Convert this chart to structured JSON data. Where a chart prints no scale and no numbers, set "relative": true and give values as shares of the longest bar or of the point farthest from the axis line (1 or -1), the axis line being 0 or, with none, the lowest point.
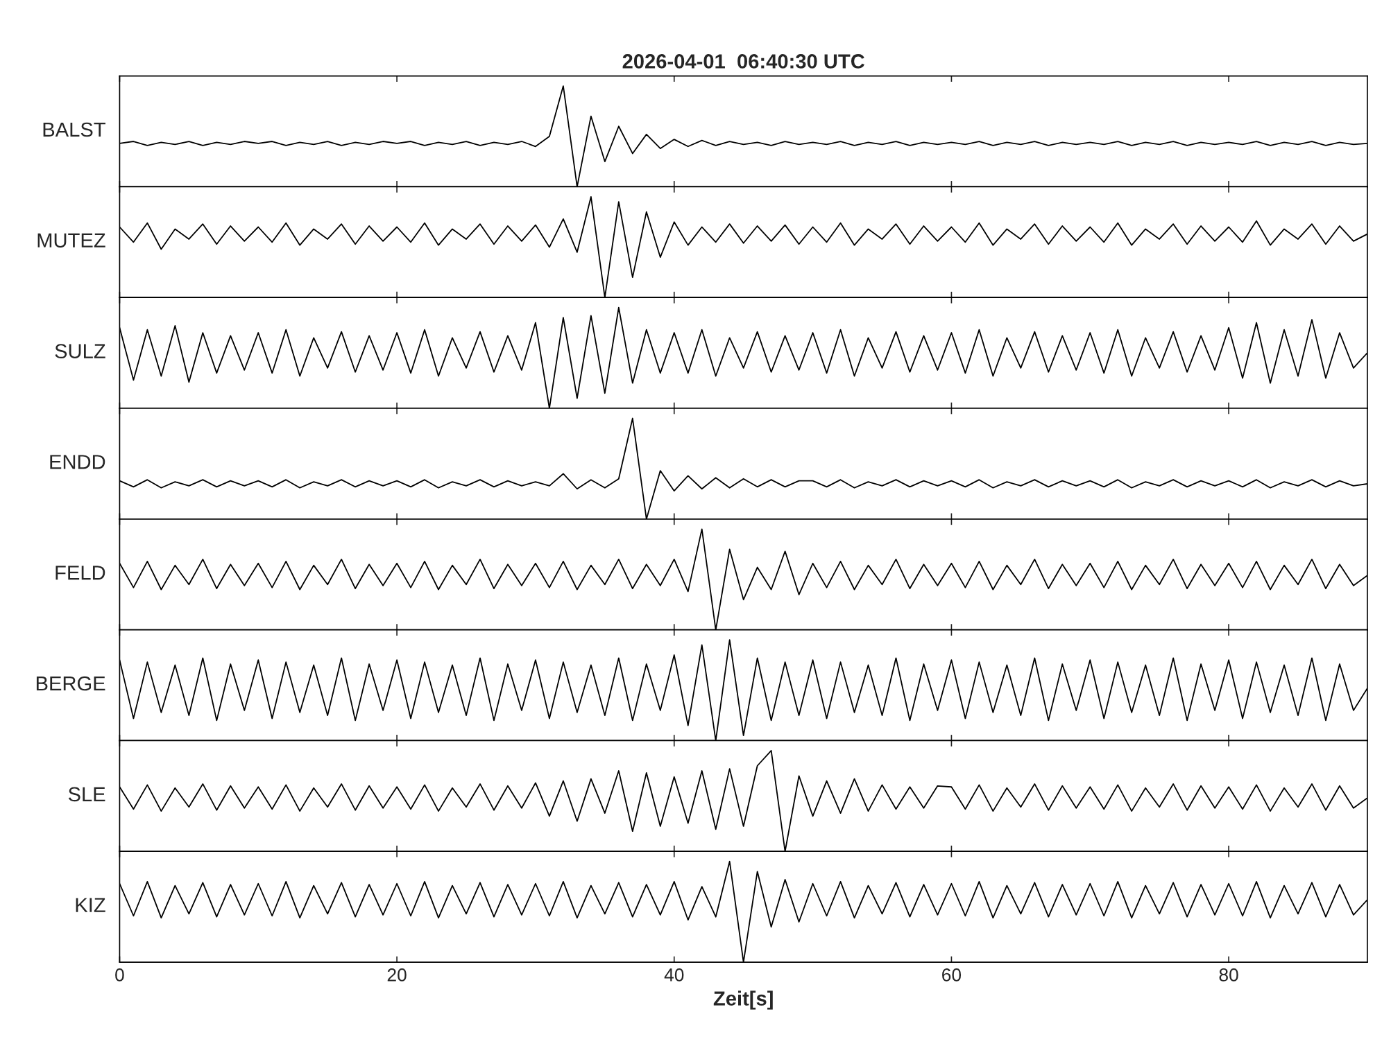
{
  "chart_data": [
    {
      "type": "line",
      "title": "2026-04-01  06:40:30 UTC",
      "ylabel": "BALST",
      "relative": true,
      "color": "#000000",
      "xlim": [
        0,
        90
      ],
      "xticks": [
        0,
        20,
        40,
        60,
        80
      ],
      "tick_labels": false,
      "x": [
        0,
        1,
        2,
        3,
        4,
        5,
        6,
        7,
        8,
        9,
        10,
        11,
        12,
        13,
        14,
        15,
        16,
        17,
        18,
        19,
        20,
        21,
        22,
        23,
        24,
        25,
        26,
        27,
        28,
        29,
        30,
        31,
        32,
        33,
        34,
        35,
        36,
        37,
        38,
        39,
        40,
        41,
        42,
        43,
        44,
        45,
        46,
        47,
        48,
        49,
        50,
        51,
        52,
        53,
        54,
        55,
        56,
        57,
        58,
        59,
        60,
        61,
        62,
        63,
        64,
        65,
        66,
        67,
        68,
        69,
        70,
        71,
        72,
        73,
        74,
        75,
        76,
        77,
        78,
        79,
        80,
        81,
        82,
        83,
        84,
        85,
        86,
        87,
        88,
        89,
        90
      ],
      "values": [
        0.43,
        0.45,
        0.41,
        0.44,
        0.42,
        0.45,
        0.41,
        0.44,
        0.42,
        0.45,
        0.43,
        0.45,
        0.41,
        0.44,
        0.42,
        0.45,
        0.41,
        0.44,
        0.42,
        0.45,
        0.43,
        0.45,
        0.41,
        0.44,
        0.42,
        0.45,
        0.41,
        0.44,
        0.42,
        0.45,
        0.4,
        0.5,
        1.0,
        0.0,
        0.7,
        0.25,
        0.6,
        0.33,
        0.52,
        0.38,
        0.47,
        0.4,
        0.46,
        0.41,
        0.45,
        0.42,
        0.44,
        0.41,
        0.45,
        0.42,
        0.44,
        0.42,
        0.45,
        0.41,
        0.44,
        0.42,
        0.45,
        0.41,
        0.44,
        0.42,
        0.44,
        0.42,
        0.45,
        0.41,
        0.44,
        0.42,
        0.45,
        0.41,
        0.44,
        0.42,
        0.44,
        0.42,
        0.45,
        0.41,
        0.44,
        0.42,
        0.45,
        0.41,
        0.44,
        0.42,
        0.44,
        0.42,
        0.45,
        0.41,
        0.44,
        0.42,
        0.45,
        0.41,
        0.44,
        0.42,
        0.43
      ]
    },
    {
      "type": "line",
      "ylabel": "MUTEZ",
      "relative": true,
      "color": "#000000",
      "xlim": [
        0,
        90
      ],
      "xticks": [
        0,
        20,
        40,
        60,
        80
      ],
      "tick_labels": false,
      "x": [
        0,
        1,
        2,
        3,
        4,
        5,
        6,
        7,
        8,
        9,
        10,
        11,
        12,
        13,
        14,
        15,
        16,
        17,
        18,
        19,
        20,
        21,
        22,
        23,
        24,
        25,
        26,
        27,
        28,
        29,
        30,
        31,
        32,
        33,
        34,
        35,
        36,
        37,
        38,
        39,
        40,
        41,
        42,
        43,
        44,
        45,
        46,
        47,
        48,
        49,
        50,
        51,
        52,
        53,
        54,
        55,
        56,
        57,
        58,
        59,
        60,
        61,
        62,
        63,
        64,
        65,
        66,
        67,
        68,
        69,
        70,
        71,
        72,
        73,
        74,
        75,
        76,
        77,
        78,
        79,
        80,
        81,
        82,
        83,
        84,
        85,
        86,
        87,
        88,
        89,
        90
      ],
      "values": [
        0.7,
        0.55,
        0.74,
        0.48,
        0.68,
        0.58,
        0.73,
        0.53,
        0.71,
        0.56,
        0.7,
        0.55,
        0.74,
        0.52,
        0.68,
        0.58,
        0.73,
        0.53,
        0.71,
        0.56,
        0.7,
        0.55,
        0.74,
        0.52,
        0.68,
        0.58,
        0.73,
        0.53,
        0.71,
        0.56,
        0.72,
        0.5,
        0.78,
        0.45,
        1.0,
        0.0,
        0.95,
        0.2,
        0.85,
        0.4,
        0.75,
        0.52,
        0.7,
        0.55,
        0.73,
        0.54,
        0.71,
        0.56,
        0.72,
        0.53,
        0.7,
        0.55,
        0.74,
        0.52,
        0.68,
        0.58,
        0.73,
        0.53,
        0.71,
        0.56,
        0.7,
        0.55,
        0.74,
        0.52,
        0.68,
        0.58,
        0.73,
        0.53,
        0.71,
        0.56,
        0.7,
        0.55,
        0.74,
        0.52,
        0.68,
        0.58,
        0.73,
        0.53,
        0.71,
        0.56,
        0.7,
        0.55,
        0.76,
        0.52,
        0.68,
        0.58,
        0.73,
        0.53,
        0.71,
        0.56,
        0.63
      ]
    },
    {
      "type": "line",
      "ylabel": "SULZ",
      "relative": true,
      "color": "#000000",
      "xlim": [
        0,
        90
      ],
      "xticks": [
        0,
        20,
        40,
        60,
        80
      ],
      "tick_labels": false,
      "x": [
        0,
        1,
        2,
        3,
        4,
        5,
        6,
        7,
        8,
        9,
        10,
        11,
        12,
        13,
        14,
        15,
        16,
        17,
        18,
        19,
        20,
        21,
        22,
        23,
        24,
        25,
        26,
        27,
        28,
        29,
        30,
        31,
        32,
        33,
        34,
        35,
        36,
        37,
        38,
        39,
        40,
        41,
        42,
        43,
        44,
        45,
        46,
        47,
        48,
        49,
        50,
        51,
        52,
        53,
        54,
        55,
        56,
        57,
        58,
        59,
        60,
        61,
        62,
        63,
        64,
        65,
        66,
        67,
        68,
        69,
        70,
        71,
        72,
        73,
        74,
        75,
        76,
        77,
        78,
        79,
        80,
        81,
        82,
        83,
        84,
        85,
        86,
        87,
        88,
        89,
        90
      ],
      "values": [
        0.8,
        0.28,
        0.78,
        0.32,
        0.82,
        0.26,
        0.75,
        0.35,
        0.72,
        0.38,
        0.75,
        0.35,
        0.78,
        0.32,
        0.7,
        0.4,
        0.76,
        0.36,
        0.72,
        0.38,
        0.75,
        0.35,
        0.78,
        0.32,
        0.7,
        0.4,
        0.76,
        0.36,
        0.72,
        0.38,
        0.85,
        0.0,
        0.9,
        0.1,
        0.92,
        0.15,
        1.0,
        0.25,
        0.78,
        0.35,
        0.75,
        0.35,
        0.78,
        0.32,
        0.7,
        0.4,
        0.76,
        0.36,
        0.72,
        0.38,
        0.75,
        0.35,
        0.78,
        0.32,
        0.7,
        0.4,
        0.76,
        0.36,
        0.72,
        0.38,
        0.75,
        0.35,
        0.78,
        0.32,
        0.7,
        0.4,
        0.76,
        0.36,
        0.72,
        0.38,
        0.75,
        0.35,
        0.78,
        0.32,
        0.7,
        0.4,
        0.76,
        0.36,
        0.72,
        0.38,
        0.8,
        0.3,
        0.85,
        0.25,
        0.78,
        0.32,
        0.88,
        0.3,
        0.75,
        0.4,
        0.55
      ]
    },
    {
      "type": "line",
      "ylabel": "ENDD",
      "relative": true,
      "color": "#000000",
      "xlim": [
        0,
        90
      ],
      "xticks": [
        0,
        20,
        40,
        60,
        80
      ],
      "tick_labels": false,
      "x": [
        0,
        1,
        2,
        3,
        4,
        5,
        6,
        7,
        8,
        9,
        10,
        11,
        12,
        13,
        14,
        15,
        16,
        17,
        18,
        19,
        20,
        21,
        22,
        23,
        24,
        25,
        26,
        27,
        28,
        29,
        30,
        31,
        32,
        33,
        34,
        35,
        36,
        37,
        38,
        39,
        40,
        41,
        42,
        43,
        44,
        45,
        46,
        47,
        48,
        49,
        50,
        51,
        52,
        53,
        54,
        55,
        56,
        57,
        58,
        59,
        60,
        61,
        62,
        63,
        64,
        65,
        66,
        67,
        68,
        69,
        70,
        71,
        72,
        73,
        74,
        75,
        76,
        77,
        78,
        79,
        80,
        81,
        82,
        83,
        84,
        85,
        86,
        87,
        88,
        89,
        90
      ],
      "values": [
        0.38,
        0.32,
        0.39,
        0.31,
        0.37,
        0.33,
        0.39,
        0.32,
        0.38,
        0.33,
        0.38,
        0.32,
        0.39,
        0.31,
        0.37,
        0.33,
        0.39,
        0.32,
        0.38,
        0.33,
        0.38,
        0.32,
        0.39,
        0.31,
        0.37,
        0.33,
        0.39,
        0.32,
        0.38,
        0.33,
        0.37,
        0.33,
        0.45,
        0.3,
        0.39,
        0.31,
        0.4,
        1.0,
        0.0,
        0.48,
        0.28,
        0.43,
        0.3,
        0.41,
        0.31,
        0.4,
        0.32,
        0.39,
        0.32,
        0.38,
        0.38,
        0.32,
        0.39,
        0.31,
        0.37,
        0.33,
        0.39,
        0.32,
        0.38,
        0.33,
        0.38,
        0.32,
        0.39,
        0.31,
        0.37,
        0.33,
        0.39,
        0.32,
        0.38,
        0.33,
        0.38,
        0.32,
        0.39,
        0.31,
        0.37,
        0.33,
        0.39,
        0.32,
        0.38,
        0.33,
        0.38,
        0.32,
        0.39,
        0.31,
        0.37,
        0.33,
        0.39,
        0.32,
        0.38,
        0.33,
        0.35
      ]
    },
    {
      "type": "line",
      "ylabel": "FELD",
      "relative": true,
      "color": "#000000",
      "xlim": [
        0,
        90
      ],
      "xticks": [
        0,
        20,
        40,
        60,
        80
      ],
      "tick_labels": false,
      "x": [
        0,
        1,
        2,
        3,
        4,
        5,
        6,
        7,
        8,
        9,
        10,
        11,
        12,
        13,
        14,
        15,
        16,
        17,
        18,
        19,
        20,
        21,
        22,
        23,
        24,
        25,
        26,
        27,
        28,
        29,
        30,
        31,
        32,
        33,
        34,
        35,
        36,
        37,
        38,
        39,
        40,
        41,
        42,
        43,
        44,
        45,
        46,
        47,
        48,
        49,
        50,
        51,
        52,
        53,
        54,
        55,
        56,
        57,
        58,
        59,
        60,
        61,
        62,
        63,
        64,
        65,
        66,
        67,
        68,
        69,
        70,
        71,
        72,
        73,
        74,
        75,
        76,
        77,
        78,
        79,
        80,
        81,
        82,
        83,
        84,
        85,
        86,
        87,
        88,
        89,
        90
      ],
      "values": [
        0.66,
        0.42,
        0.68,
        0.4,
        0.64,
        0.45,
        0.7,
        0.41,
        0.65,
        0.44,
        0.66,
        0.42,
        0.68,
        0.4,
        0.64,
        0.45,
        0.7,
        0.41,
        0.65,
        0.44,
        0.66,
        0.42,
        0.68,
        0.4,
        0.64,
        0.45,
        0.7,
        0.41,
        0.65,
        0.44,
        0.66,
        0.42,
        0.68,
        0.4,
        0.64,
        0.45,
        0.7,
        0.41,
        0.65,
        0.44,
        0.7,
        0.38,
        1.0,
        0.0,
        0.8,
        0.3,
        0.62,
        0.4,
        0.78,
        0.35,
        0.66,
        0.42,
        0.68,
        0.4,
        0.64,
        0.45,
        0.7,
        0.41,
        0.65,
        0.44,
        0.66,
        0.42,
        0.68,
        0.4,
        0.64,
        0.45,
        0.7,
        0.41,
        0.65,
        0.44,
        0.66,
        0.42,
        0.68,
        0.4,
        0.64,
        0.45,
        0.7,
        0.41,
        0.65,
        0.44,
        0.66,
        0.42,
        0.68,
        0.4,
        0.64,
        0.45,
        0.7,
        0.41,
        0.65,
        0.44,
        0.54
      ]
    },
    {
      "type": "line",
      "ylabel": "BERGE",
      "relative": true,
      "color": "#000000",
      "xlim": [
        0,
        90
      ],
      "xticks": [
        0,
        20,
        40,
        60,
        80
      ],
      "tick_labels": false,
      "x": [
        0,
        1,
        2,
        3,
        4,
        5,
        6,
        7,
        8,
        9,
        10,
        11,
        12,
        13,
        14,
        15,
        16,
        17,
        18,
        19,
        20,
        21,
        22,
        23,
        24,
        25,
        26,
        27,
        28,
        29,
        30,
        31,
        32,
        33,
        34,
        35,
        36,
        37,
        38,
        39,
        40,
        41,
        42,
        43,
        44,
        45,
        46,
        47,
        48,
        49,
        50,
        51,
        52,
        53,
        54,
        55,
        56,
        57,
        58,
        59,
        60,
        61,
        62,
        63,
        64,
        65,
        66,
        67,
        68,
        69,
        70,
        71,
        72,
        73,
        74,
        75,
        76,
        77,
        78,
        79,
        80,
        81,
        82,
        83,
        84,
        85,
        86,
        87,
        88,
        89,
        90
      ],
      "values": [
        0.8,
        0.22,
        0.78,
        0.28,
        0.75,
        0.25,
        0.82,
        0.2,
        0.76,
        0.3,
        0.8,
        0.22,
        0.78,
        0.28,
        0.75,
        0.25,
        0.82,
        0.2,
        0.76,
        0.3,
        0.8,
        0.22,
        0.78,
        0.28,
        0.75,
        0.25,
        0.82,
        0.2,
        0.76,
        0.3,
        0.8,
        0.22,
        0.78,
        0.28,
        0.75,
        0.25,
        0.82,
        0.2,
        0.76,
        0.3,
        0.85,
        0.15,
        0.95,
        0.0,
        1.0,
        0.05,
        0.82,
        0.2,
        0.78,
        0.25,
        0.8,
        0.22,
        0.78,
        0.28,
        0.75,
        0.25,
        0.82,
        0.2,
        0.76,
        0.3,
        0.8,
        0.22,
        0.78,
        0.28,
        0.75,
        0.25,
        0.82,
        0.2,
        0.76,
        0.3,
        0.8,
        0.22,
        0.78,
        0.28,
        0.75,
        0.25,
        0.82,
        0.2,
        0.76,
        0.3,
        0.8,
        0.22,
        0.78,
        0.28,
        0.75,
        0.25,
        0.82,
        0.2,
        0.76,
        0.3,
        0.52
      ]
    },
    {
      "type": "line",
      "ylabel": "SLE",
      "relative": true,
      "color": "#000000",
      "xlim": [
        0,
        90
      ],
      "xticks": [
        0,
        20,
        40,
        60,
        80
      ],
      "tick_labels": false,
      "x": [
        0,
        1,
        2,
        3,
        4,
        5,
        6,
        7,
        8,
        9,
        10,
        11,
        12,
        13,
        14,
        15,
        16,
        17,
        18,
        19,
        20,
        21,
        22,
        23,
        24,
        25,
        26,
        27,
        28,
        29,
        30,
        31,
        32,
        33,
        34,
        35,
        36,
        37,
        38,
        39,
        40,
        41,
        42,
        43,
        44,
        45,
        46,
        47,
        48,
        49,
        50,
        51,
        52,
        53,
        54,
        55,
        56,
        57,
        58,
        59,
        60,
        61,
        62,
        63,
        64,
        65,
        66,
        67,
        68,
        69,
        70,
        71,
        72,
        73,
        74,
        75,
        76,
        77,
        78,
        79,
        80,
        81,
        82,
        83,
        84,
        85,
        86,
        87,
        88,
        89,
        90
      ],
      "values": [
        0.64,
        0.42,
        0.66,
        0.4,
        0.63,
        0.44,
        0.67,
        0.41,
        0.65,
        0.43,
        0.64,
        0.42,
        0.66,
        0.4,
        0.63,
        0.44,
        0.67,
        0.41,
        0.65,
        0.43,
        0.64,
        0.42,
        0.66,
        0.4,
        0.63,
        0.44,
        0.67,
        0.41,
        0.65,
        0.43,
        0.68,
        0.35,
        0.7,
        0.3,
        0.72,
        0.38,
        0.8,
        0.2,
        0.78,
        0.25,
        0.74,
        0.28,
        0.8,
        0.22,
        0.82,
        0.25,
        0.85,
        1.0,
        0.0,
        0.75,
        0.35,
        0.7,
        0.38,
        0.72,
        0.4,
        0.66,
        0.42,
        0.64,
        0.43,
        0.65,
        0.64,
        0.42,
        0.66,
        0.4,
        0.63,
        0.44,
        0.67,
        0.41,
        0.65,
        0.43,
        0.64,
        0.42,
        0.66,
        0.4,
        0.63,
        0.44,
        0.67,
        0.41,
        0.65,
        0.43,
        0.64,
        0.42,
        0.66,
        0.4,
        0.63,
        0.44,
        0.67,
        0.41,
        0.65,
        0.43,
        0.53
      ]
    },
    {
      "type": "line",
      "ylabel": "KIZ",
      "xlabel": "Zeit[s]",
      "relative": true,
      "color": "#000000",
      "xlim": [
        0,
        90
      ],
      "xticks": [
        0,
        20,
        40,
        60,
        80
      ],
      "tick_labels": "x",
      "x": [
        0,
        1,
        2,
        3,
        4,
        5,
        6,
        7,
        8,
        9,
        10,
        11,
        12,
        13,
        14,
        15,
        16,
        17,
        18,
        19,
        20,
        21,
        22,
        23,
        24,
        25,
        26,
        27,
        28,
        29,
        30,
        31,
        32,
        33,
        34,
        35,
        36,
        37,
        38,
        39,
        40,
        41,
        42,
        43,
        44,
        45,
        46,
        47,
        48,
        49,
        50,
        51,
        52,
        53,
        54,
        55,
        56,
        57,
        58,
        59,
        60,
        61,
        62,
        63,
        64,
        65,
        66,
        67,
        68,
        69,
        70,
        71,
        72,
        73,
        74,
        75,
        76,
        77,
        78,
        79,
        80,
        81,
        82,
        83,
        84,
        85,
        86,
        87,
        88,
        89,
        90
      ],
      "values": [
        0.78,
        0.46,
        0.8,
        0.44,
        0.76,
        0.48,
        0.79,
        0.45,
        0.77,
        0.47,
        0.78,
        0.46,
        0.8,
        0.44,
        0.76,
        0.48,
        0.79,
        0.45,
        0.77,
        0.47,
        0.78,
        0.46,
        0.8,
        0.44,
        0.76,
        0.48,
        0.79,
        0.45,
        0.77,
        0.47,
        0.78,
        0.46,
        0.8,
        0.44,
        0.76,
        0.48,
        0.79,
        0.45,
        0.77,
        0.47,
        0.8,
        0.42,
        0.75,
        0.45,
        1.0,
        0.0,
        0.9,
        0.35,
        0.82,
        0.4,
        0.78,
        0.46,
        0.8,
        0.44,
        0.76,
        0.48,
        0.79,
        0.45,
        0.77,
        0.47,
        0.78,
        0.46,
        0.8,
        0.44,
        0.76,
        0.48,
        0.79,
        0.45,
        0.77,
        0.47,
        0.78,
        0.46,
        0.8,
        0.44,
        0.76,
        0.48,
        0.79,
        0.45,
        0.77,
        0.47,
        0.78,
        0.46,
        0.8,
        0.44,
        0.76,
        0.48,
        0.79,
        0.45,
        0.77,
        0.47,
        0.62
      ]
    }
  ]
}
